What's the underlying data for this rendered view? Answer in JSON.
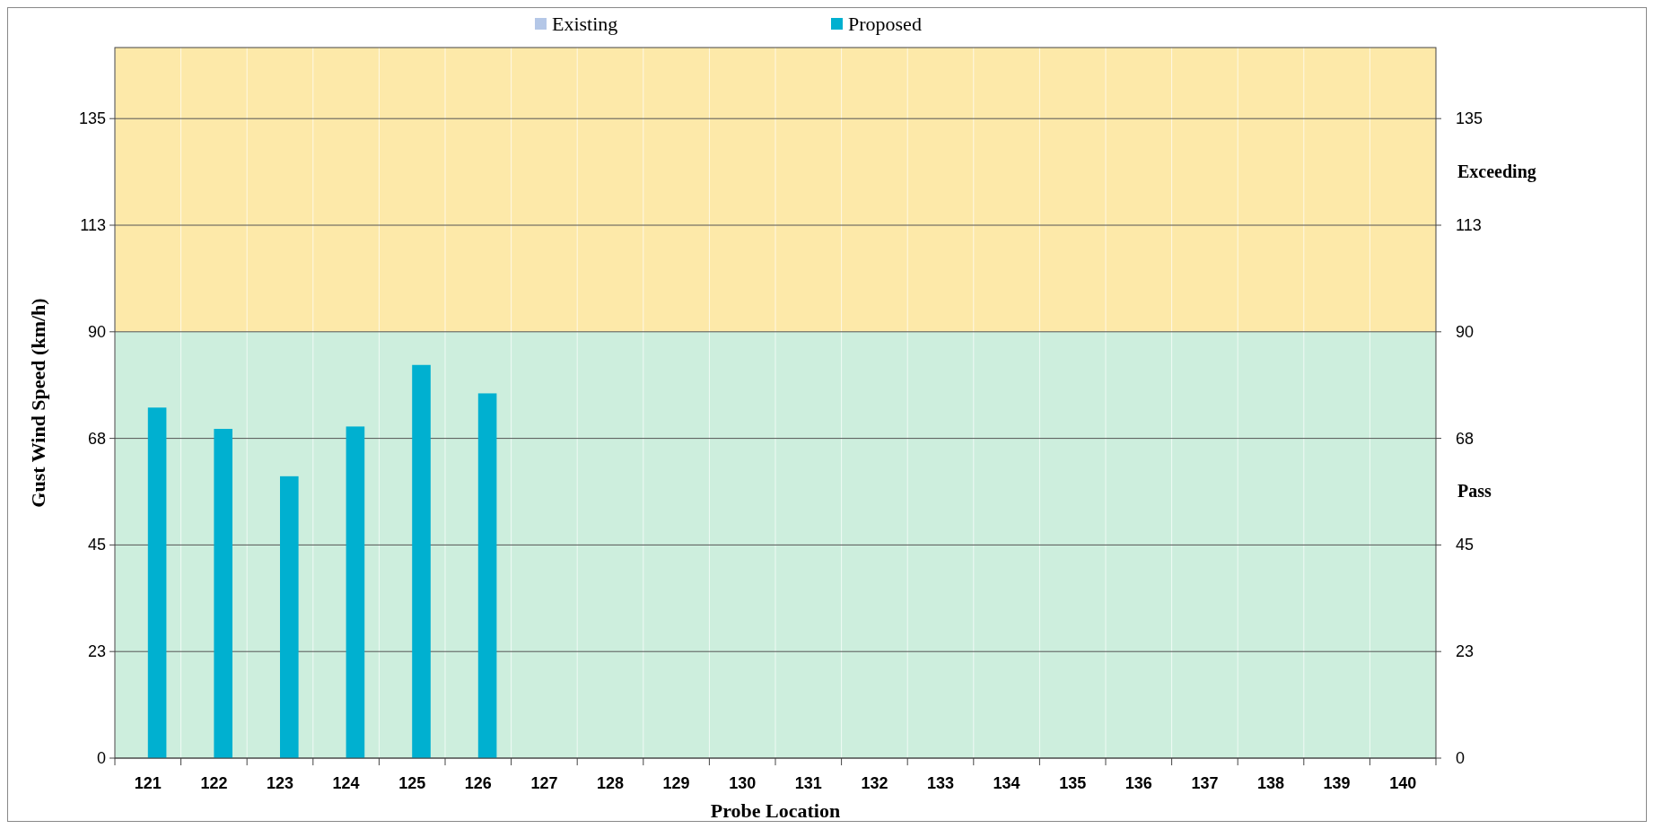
{
  "chart_data": {
    "type": "bar",
    "xlabel": "Probe Location",
    "ylabel": "Gust Wind Speed (km/h)",
    "categories": [
      "121",
      "122",
      "123",
      "124",
      "125",
      "126",
      "127",
      "128",
      "129",
      "130",
      "131",
      "132",
      "133",
      "134",
      "135",
      "136",
      "137",
      "138",
      "139",
      "140"
    ],
    "series": [
      {
        "name": "Existing",
        "color": "#b4c7e7",
        "values": [
          null,
          null,
          null,
          null,
          null,
          null,
          null,
          null,
          null,
          null,
          null,
          null,
          null,
          null,
          null,
          null,
          null,
          null,
          null,
          null
        ]
      },
      {
        "name": "Proposed",
        "color": "#00b0d0",
        "values": [
          74,
          69.5,
          59.5,
          70,
          83,
          77,
          null,
          null,
          null,
          null,
          null,
          null,
          null,
          null,
          null,
          null,
          null,
          null,
          null,
          null
        ]
      }
    ],
    "ylim": [
      0,
      150
    ],
    "yticks": [
      0,
      {
        "value": 22.5,
        "label": "23"
      },
      45,
      {
        "value": 67.5,
        "label": "68"
      },
      90,
      {
        "value": 112.5,
        "label": "113"
      },
      135
    ],
    "y2lim": [
      0,
      150
    ],
    "y2ticks": [
      0,
      {
        "value": 22.5,
        "label": "23"
      },
      45,
      {
        "value": 67.5,
        "label": "68"
      },
      90,
      {
        "value": 112.5,
        "label": "113"
      },
      135
    ],
    "bands": [
      {
        "axis": "y",
        "from": 0,
        "to": 90,
        "label": "Pass",
        "color": "#cdeedd"
      },
      {
        "axis": "y",
        "from": 90,
        "to": 150,
        "label": "Exceeding",
        "color": "#fde9a9"
      }
    ],
    "grid": "y",
    "legend": "top"
  }
}
